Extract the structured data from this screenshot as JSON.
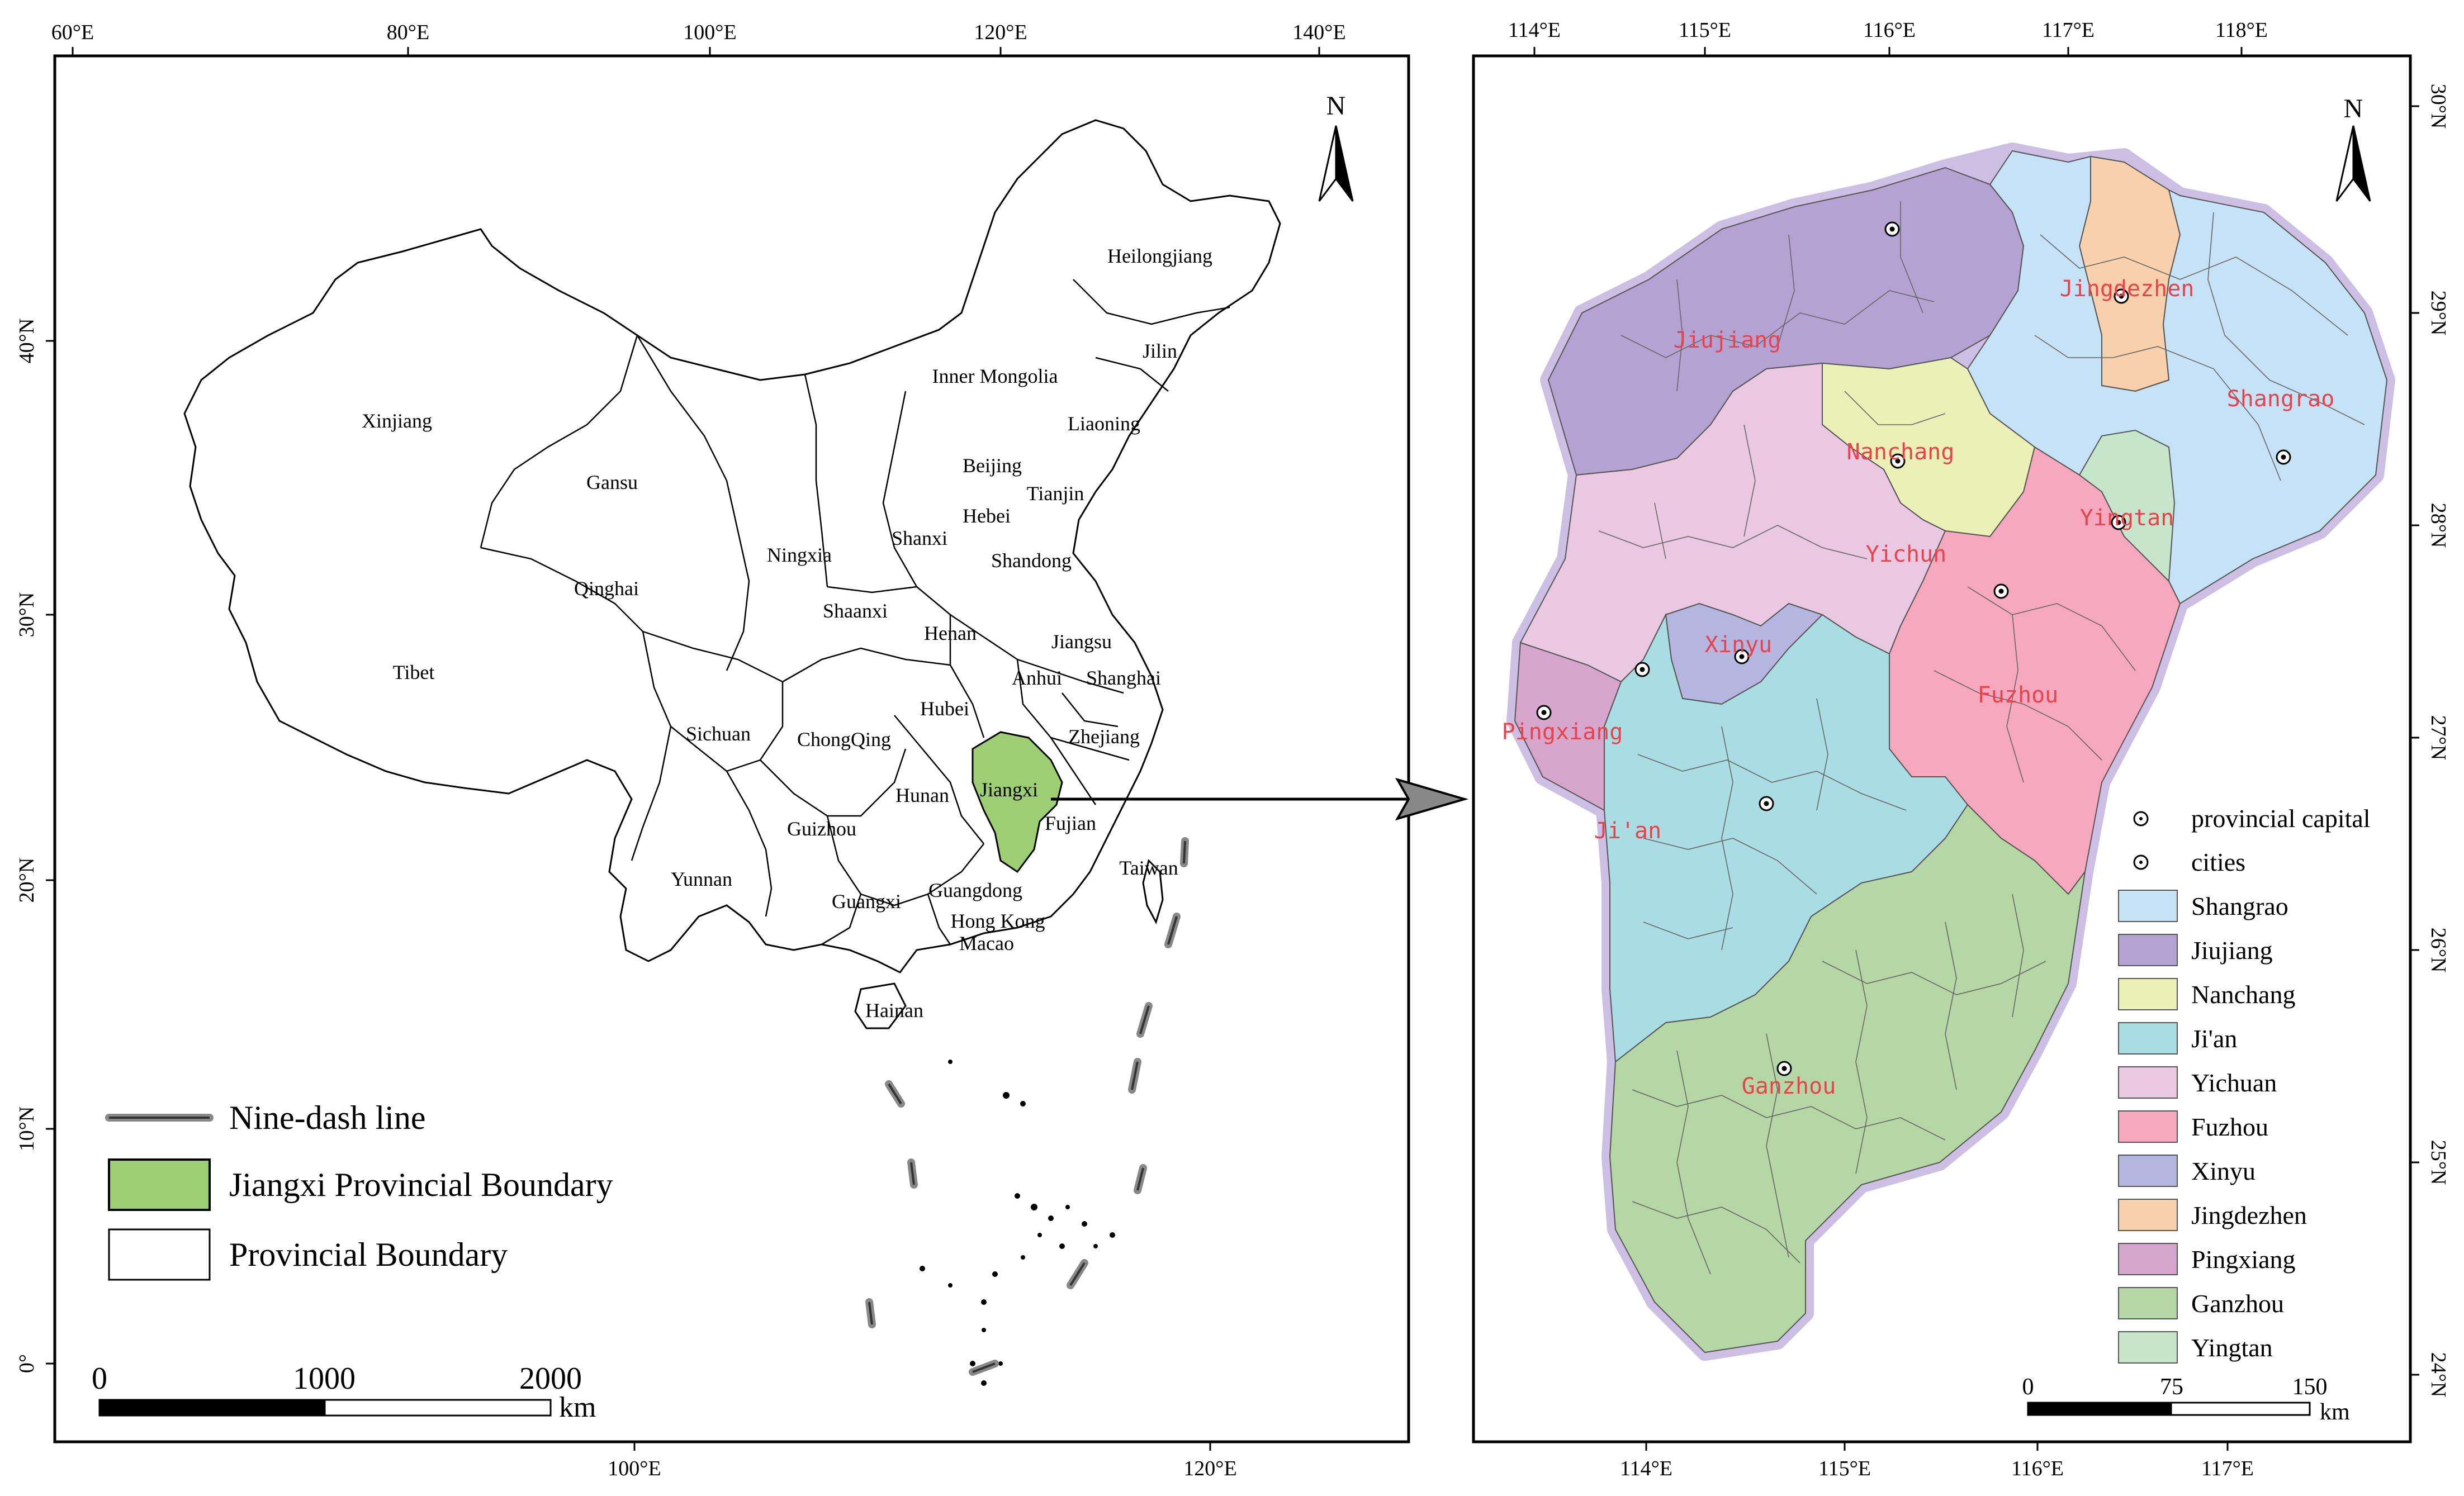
{
  "left_map": {
    "top_ticks": [
      "60°E",
      "80°E",
      "100°E",
      "120°E",
      "140°E"
    ],
    "bottom_ticks": [
      "100°E",
      "120°E"
    ],
    "left_ticks": [
      "40°N",
      "30°N",
      "20°N",
      "10°N",
      "0°"
    ],
    "provinces": [
      {
        "name": "Heilongjiang"
      },
      {
        "name": "Jilin"
      },
      {
        "name": "Liaoning"
      },
      {
        "name": "Inner Mongolia"
      },
      {
        "name": "Xinjiang"
      },
      {
        "name": "Gansu"
      },
      {
        "name": "Beijing"
      },
      {
        "name": "Tianjin"
      },
      {
        "name": "Hebei"
      },
      {
        "name": "Ningxia"
      },
      {
        "name": "Shanxi"
      },
      {
        "name": "Shandong"
      },
      {
        "name": "Qinghai"
      },
      {
        "name": "Shaanxi"
      },
      {
        "name": "Henan"
      },
      {
        "name": "Jiangsu"
      },
      {
        "name": "Tibet"
      },
      {
        "name": "Anhui"
      },
      {
        "name": "Shanghai"
      },
      {
        "name": "Hubei"
      },
      {
        "name": "Sichuan"
      },
      {
        "name": "ChongQing"
      },
      {
        "name": "Zhejiang"
      },
      {
        "name": "Jiangxi"
      },
      {
        "name": "Hunan"
      },
      {
        "name": "Fujian"
      },
      {
        "name": "Guizhou"
      },
      {
        "name": "Taiwan"
      },
      {
        "name": "Yunnan"
      },
      {
        "name": "Guangxi"
      },
      {
        "name": "Guangdong"
      },
      {
        "name": "Hong Kong"
      },
      {
        "name": "Macao"
      },
      {
        "name": "Hainan"
      }
    ],
    "north": "N",
    "legend": [
      {
        "label": "Nine-dash line"
      },
      {
        "label": "Jiangxi Provincial Boundary",
        "color": "#9ece74"
      },
      {
        "label": "Provincial Boundary",
        "color": "#ffffff"
      }
    ],
    "scale": {
      "labels": [
        "0",
        "1000",
        "2000"
      ],
      "unit": "km"
    }
  },
  "right_map": {
    "top_ticks": [
      "114°E",
      "115°E",
      "116°E",
      "117°E",
      "118°E"
    ],
    "bottom_ticks": [
      "114°E",
      "115°E",
      "116°E",
      "117°E"
    ],
    "right_ticks": [
      "30°N",
      "29°N",
      "28°N",
      "27°N",
      "26°N",
      "25°N",
      "24°N"
    ],
    "cities": [
      {
        "name": "Jiujiang",
        "color": "#b4a3d2"
      },
      {
        "name": "Jingdezhen",
        "color": "#f8d1ac"
      },
      {
        "name": "Shangrao",
        "color": "#c6e2f6"
      },
      {
        "name": "Nanchang",
        "color": "#eaf0b6"
      },
      {
        "name": "Yingtan",
        "color": "#c6e6cc"
      },
      {
        "name": "Yichun",
        "color": "#ebc8e2"
      },
      {
        "name": "Xinyu",
        "color": "#b5b6e0"
      },
      {
        "name": "Fuzhou",
        "color": "#f5a8be"
      },
      {
        "name": "Pingxiang",
        "color": "#d7a6cd"
      },
      {
        "name": "Ji'an",
        "color": "#aadce4"
      },
      {
        "name": "Ganzhou",
        "color": "#b5d7a6"
      }
    ],
    "north": "N",
    "symbol_legend": [
      "provincial capital",
      "cities"
    ],
    "legend": [
      {
        "label": "Shangrao",
        "color": "#c6e2f6"
      },
      {
        "label": "Jiujiang",
        "color": "#b4a3d2"
      },
      {
        "label": "Nanchang",
        "color": "#eaf0b6"
      },
      {
        "label": "Ji'an",
        "color": "#aadce4"
      },
      {
        "label": "Yichuan",
        "color": "#ebc8e2"
      },
      {
        "label": "Fuzhou",
        "color": "#f5a8be"
      },
      {
        "label": "Xinyu",
        "color": "#b5b6e0"
      },
      {
        "label": "Jingdezhen",
        "color": "#f8d1ac"
      },
      {
        "label": "Pingxiang",
        "color": "#d7a6cd"
      },
      {
        "label": "Ganzhou",
        "color": "#b5d7a6"
      },
      {
        "label": "Yingtan",
        "color": "#c6e6cc"
      }
    ],
    "scale": {
      "labels": [
        "0",
        "75",
        "150"
      ],
      "unit": "km"
    }
  }
}
